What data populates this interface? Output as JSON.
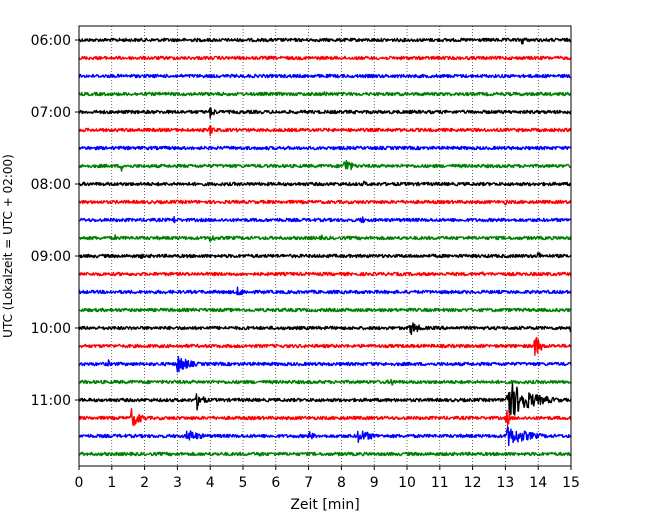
{
  "chart_data": {
    "type": "line",
    "subtype": "helicorder",
    "title": "",
    "xlabel": "Zeit  [min]",
    "ylabel": "UTC (Lokalzeit = UTC + 02:00)",
    "xlim": [
      0,
      15
    ],
    "x_ticks": [
      0,
      1,
      2,
      3,
      4,
      5,
      6,
      7,
      8,
      9,
      10,
      11,
      12,
      13,
      14,
      15
    ],
    "y_tick_labels": [
      "06:00",
      "07:00",
      "08:00",
      "09:00",
      "10:00",
      "11:00"
    ],
    "vertical_grid": true,
    "grid_style": "dotted",
    "trace_interval_minutes": 15,
    "start_time": "06:00",
    "colors": [
      "#000000",
      "#ff0000",
      "#0000ff",
      "#008000"
    ],
    "traces": [
      {
        "row": 0,
        "events": [
          {
            "t": 13.5,
            "amp": 0.3,
            "dur": 0.4
          }
        ]
      },
      {
        "row": 1,
        "events": []
      },
      {
        "row": 2,
        "events": []
      },
      {
        "row": 3,
        "events": [
          {
            "t": 7.5,
            "amp": 0.2,
            "dur": 0.4
          }
        ]
      },
      {
        "row": 4,
        "events": [
          {
            "t": 4.0,
            "amp": 0.35,
            "dur": 0.5
          }
        ]
      },
      {
        "row": 5,
        "events": [
          {
            "t": 4.0,
            "amp": 0.35,
            "dur": 0.4
          }
        ]
      },
      {
        "row": 6,
        "events": []
      },
      {
        "row": 7,
        "events": [
          {
            "t": 1.3,
            "amp": 0.3,
            "dur": 0.3
          },
          {
            "t": 8.1,
            "amp": 0.55,
            "dur": 0.6
          }
        ]
      },
      {
        "row": 8,
        "events": [
          {
            "t": 8.7,
            "amp": 0.25,
            "dur": 0.2
          }
        ]
      },
      {
        "row": 9,
        "events": [
          {
            "t": 13.0,
            "amp": 0.2,
            "dur": 0.4
          }
        ]
      },
      {
        "row": 10,
        "events": [
          {
            "t": 2.9,
            "amp": 0.3,
            "dur": 0.1
          },
          {
            "t": 8.6,
            "amp": 0.3,
            "dur": 0.3
          }
        ]
      },
      {
        "row": 11,
        "events": [
          {
            "t": 1.1,
            "amp": 0.2,
            "dur": 0.2
          },
          {
            "t": 4.0,
            "amp": 0.3,
            "dur": 0.5
          },
          {
            "t": 7.4,
            "amp": 0.2,
            "dur": 0.2
          }
        ]
      },
      {
        "row": 12,
        "events": [
          {
            "t": 1.9,
            "amp": 0.2,
            "dur": 0.2
          },
          {
            "t": 14.0,
            "amp": 0.3,
            "dur": 0.3
          }
        ]
      },
      {
        "row": 13,
        "events": [
          {
            "t": 9.5,
            "amp": 0.15,
            "dur": 0.2
          },
          {
            "t": 12.3,
            "amp": 0.2,
            "dur": 0.1
          }
        ]
      },
      {
        "row": 14,
        "events": [
          {
            "t": 4.8,
            "amp": 0.3,
            "dur": 0.9
          }
        ]
      },
      {
        "row": 15,
        "events": []
      },
      {
        "row": 16,
        "events": [
          {
            "t": 10.1,
            "amp": 0.45,
            "dur": 0.8
          },
          {
            "t": 15.0,
            "amp": 0.3,
            "dur": 0.1
          }
        ]
      },
      {
        "row": 17,
        "events": [
          {
            "t": 13.9,
            "amp": 0.75,
            "dur": 0.5
          }
        ]
      },
      {
        "row": 18,
        "events": [
          {
            "t": 0.9,
            "amp": 0.25,
            "dur": 0.1
          },
          {
            "t": 3.0,
            "amp": 0.55,
            "dur": 1.1
          },
          {
            "t": 8.9,
            "amp": 0.2,
            "dur": 0.3
          }
        ]
      },
      {
        "row": 19,
        "events": [
          {
            "t": 9.5,
            "amp": 0.25,
            "dur": 0.6
          }
        ]
      },
      {
        "row": 20,
        "events": [
          {
            "t": 3.6,
            "amp": 0.55,
            "dur": 0.6
          },
          {
            "t": 13.05,
            "amp": 1.2,
            "dur": 2.0
          }
        ]
      },
      {
        "row": 21,
        "events": [
          {
            "t": 1.6,
            "amp": 0.55,
            "dur": 0.9
          },
          {
            "t": 13.05,
            "amp": 0.7,
            "dur": 0.2
          }
        ]
      },
      {
        "row": 22,
        "events": [
          {
            "t": 3.3,
            "amp": 0.4,
            "dur": 1.2
          },
          {
            "t": 7.0,
            "amp": 0.3,
            "dur": 0.6
          },
          {
            "t": 8.5,
            "amp": 0.4,
            "dur": 1.4
          },
          {
            "t": 13.05,
            "amp": 0.6,
            "dur": 2.0
          }
        ]
      },
      {
        "row": 23,
        "events": [
          {
            "t": 5.5,
            "amp": 0.2,
            "dur": 0.4
          },
          {
            "t": 14.0,
            "amp": 0.15,
            "dur": 0.3
          }
        ]
      }
    ]
  }
}
